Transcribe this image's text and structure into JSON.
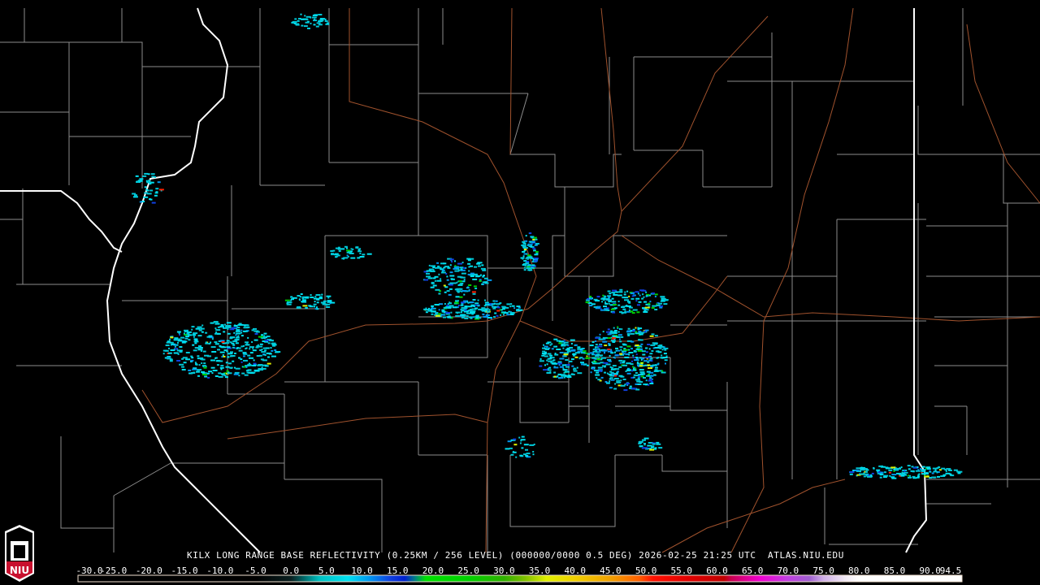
{
  "product_title": "KILX LONG RANGE BASE REFLECTIVITY (0.25KM / 256 LEVEL) (000000/0000 0.5 DEG) 2026-02-25 21:25 UTC  ATLAS.NIU.EDU",
  "logo_text": "NIU",
  "colorbar": {
    "labels": [
      "-30.0",
      "-25.0",
      "-20.0",
      "-15.0",
      "-10.0",
      "-5.0",
      "0.0",
      "5.0",
      "10.0",
      "15.0",
      "20.0",
      "25.0",
      "30.0",
      "35.0",
      "40.0",
      "45.0",
      "50.0",
      "55.0",
      "60.0",
      "65.0",
      "70.0",
      "75.0",
      "80.0",
      "85.0",
      "90.0",
      "94.5"
    ],
    "min": -30.0,
    "max": 94.5,
    "stops": [
      {
        "v": -30,
        "c": "#000000"
      },
      {
        "v": -5,
        "c": "#000000"
      },
      {
        "v": 0,
        "c": "#0a2020"
      },
      {
        "v": 2,
        "c": "#007070"
      },
      {
        "v": 4,
        "c": "#00c0c0"
      },
      {
        "v": 8,
        "c": "#00e0f0"
      },
      {
        "v": 11,
        "c": "#0098f0"
      },
      {
        "v": 14,
        "c": "#1040e0"
      },
      {
        "v": 16,
        "c": "#0020d0"
      },
      {
        "v": 17.5,
        "c": "#008080"
      },
      {
        "v": 19,
        "c": "#00e000"
      },
      {
        "v": 25,
        "c": "#00d000"
      },
      {
        "v": 30,
        "c": "#30b000"
      },
      {
        "v": 33,
        "c": "#80c000"
      },
      {
        "v": 36,
        "c": "#e0f000"
      },
      {
        "v": 40,
        "c": "#f0d000"
      },
      {
        "v": 45,
        "c": "#f0a000"
      },
      {
        "v": 49,
        "c": "#ff6000"
      },
      {
        "v": 51,
        "c": "#ff1000"
      },
      {
        "v": 56,
        "c": "#e00000"
      },
      {
        "v": 61,
        "c": "#c00000"
      },
      {
        "v": 62,
        "c": "#c80050"
      },
      {
        "v": 66,
        "c": "#f000d0"
      },
      {
        "v": 70,
        "c": "#c040e0"
      },
      {
        "v": 73,
        "c": "#a060d0"
      },
      {
        "v": 75,
        "c": "#d0b0e8"
      },
      {
        "v": 78,
        "c": "#f0e8f4"
      },
      {
        "v": 80,
        "c": "#ffffff"
      },
      {
        "v": 94.5,
        "c": "#ffffff"
      }
    ]
  },
  "colors": {
    "state_border": "#ffffff",
    "county_border": "#8c8c8c",
    "highway": "#a0522d",
    "background": "#000000"
  }
}
